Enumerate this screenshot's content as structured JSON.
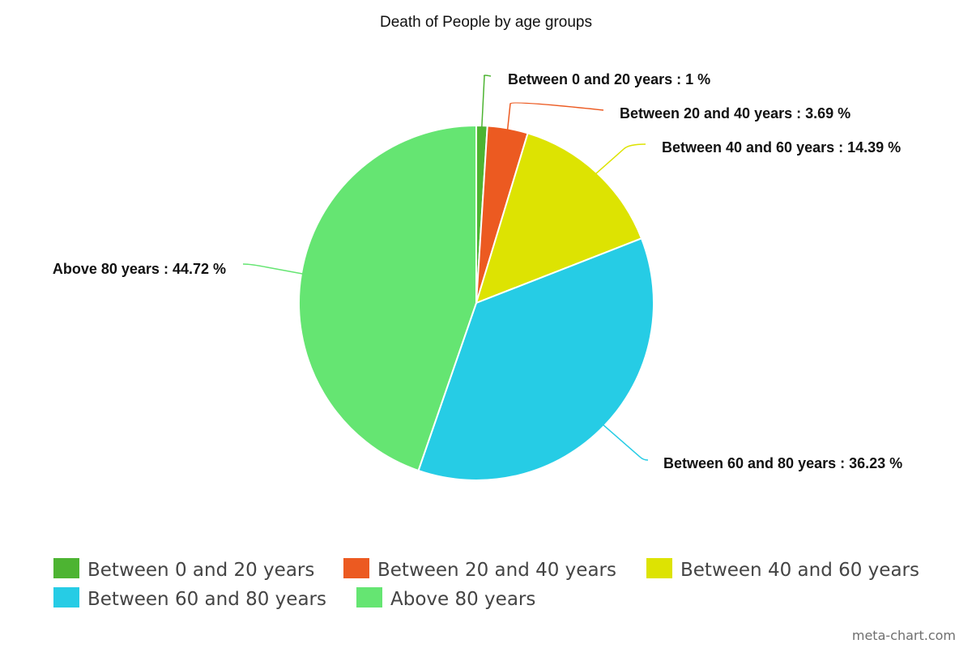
{
  "chart_data": {
    "type": "pie",
    "title": "Death of People by age groups",
    "unit": "%",
    "categories": [
      "Between 0 and 20 years",
      "Between 20 and 40 years",
      "Between 40 and 60 years",
      "Between 60 and 80 years",
      "Above 80 years"
    ],
    "values": [
      1,
      3.69,
      14.39,
      36.23,
      44.72
    ],
    "data_labels": [
      "Between 0 and 20 years : 1 %",
      "Between 20 and 40 years : 3.69 %",
      "Between 40 and 60 years : 14.39 %",
      "Between 60 and 80 years : 36.23 %",
      "Above 80 years : 44.72 %"
    ],
    "colors": [
      "#4db432",
      "#ec5a21",
      "#dde302",
      "#26cce5",
      "#65e572"
    ],
    "start_angle": "12 o'clock",
    "direction": "clockwise",
    "legend": {
      "placement": "bottom",
      "entries": [
        "Between 0 and 20 years",
        "Between 20 and 40 years",
        "Between 40 and 60 years",
        "Between 60 and 80 years",
        "Above 80 years"
      ]
    }
  },
  "watermark": "meta-chart.com"
}
